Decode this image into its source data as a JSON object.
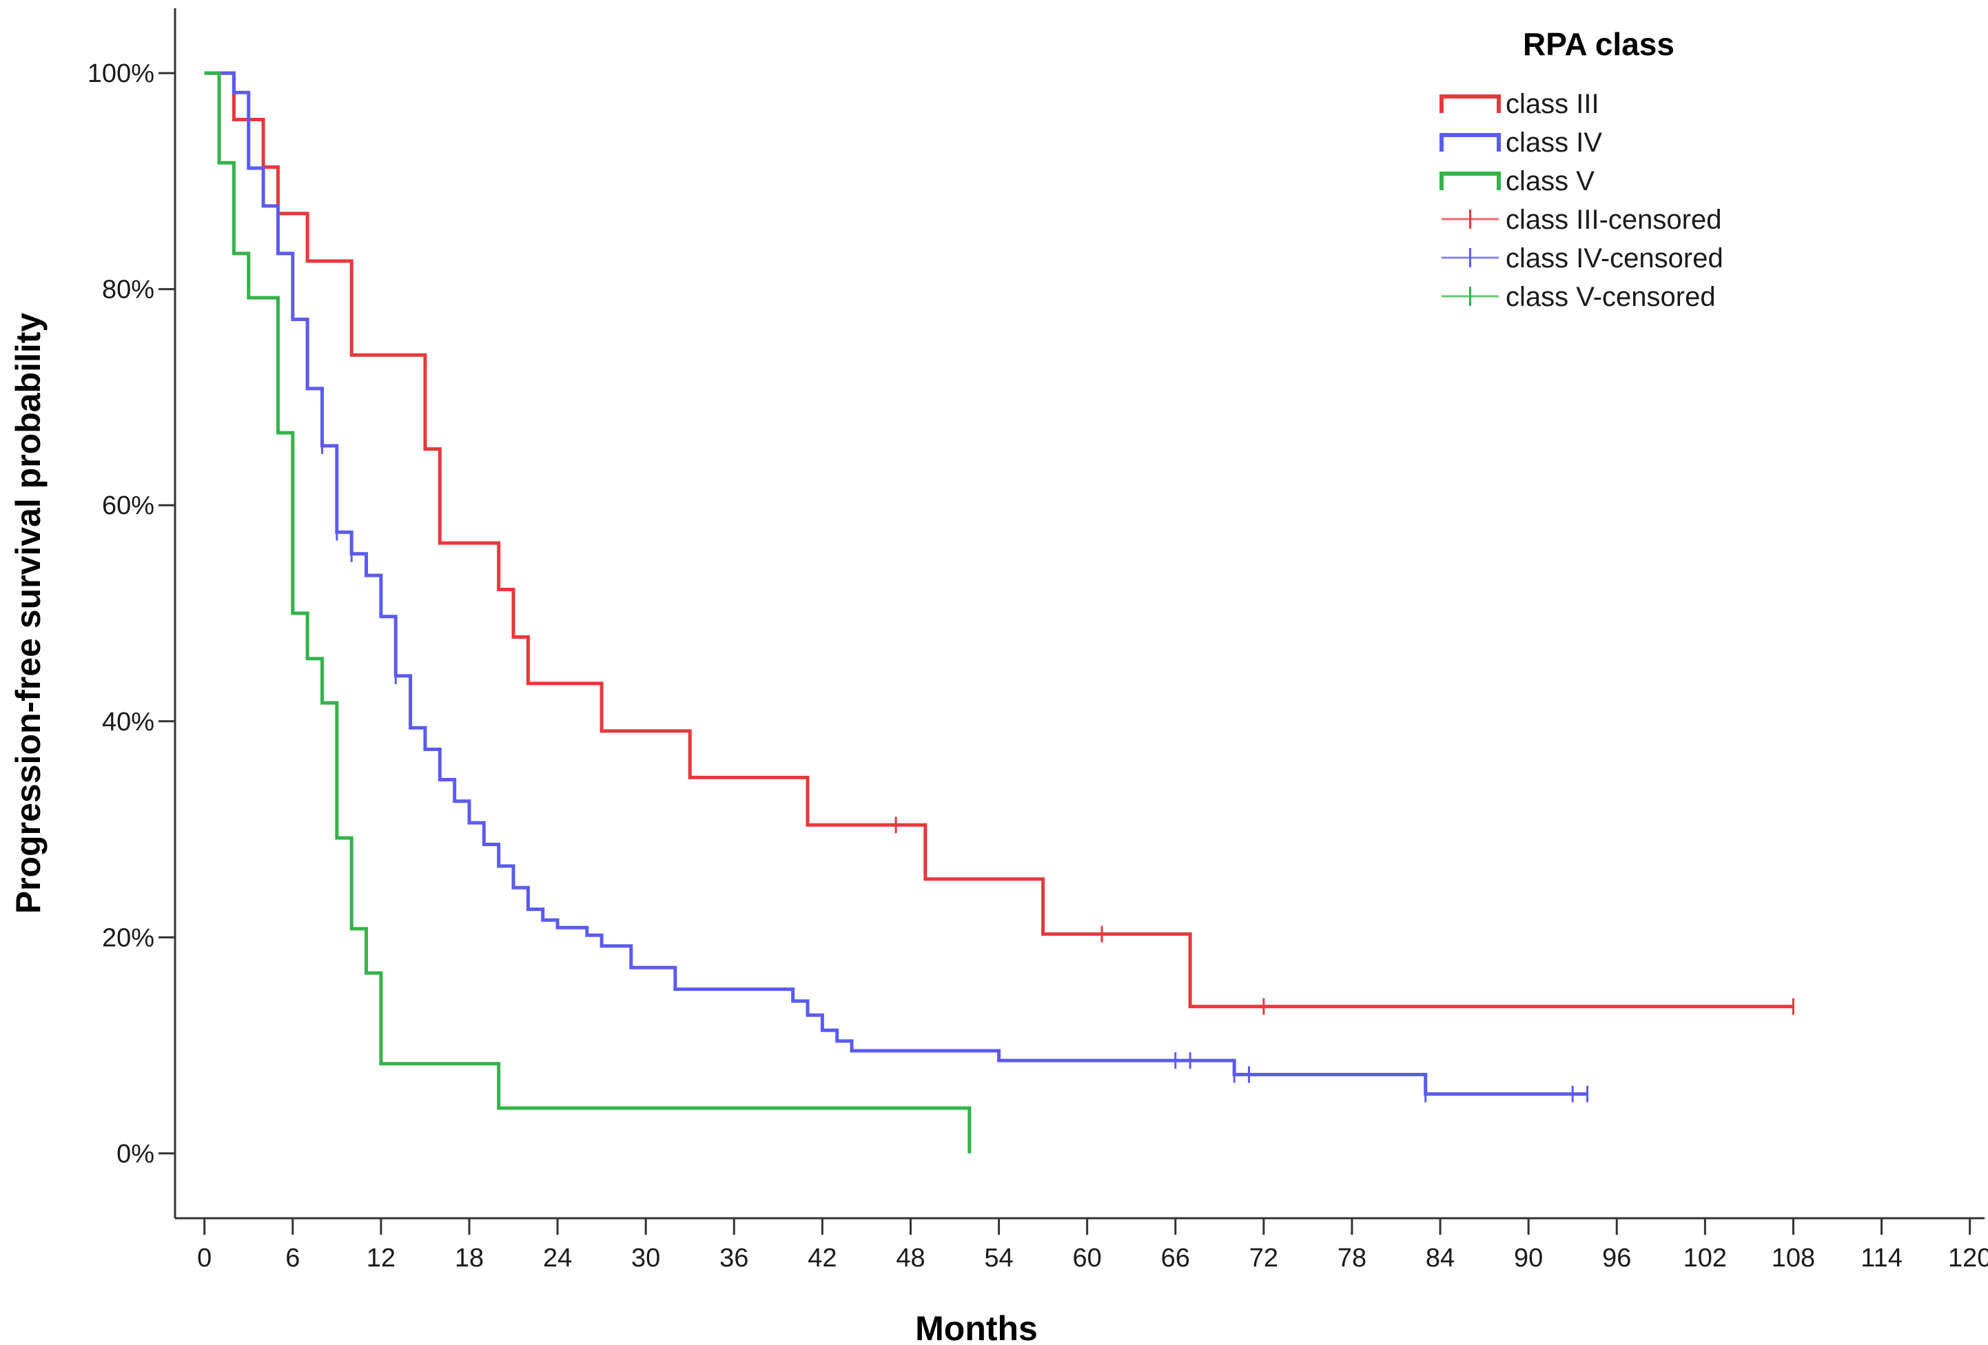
{
  "chart_data": {
    "type": "line",
    "subtype": "kaplan-meier step",
    "xlabel": "Months",
    "ylabel": "Progression-free survival probability",
    "xlim": [
      -2,
      121
    ],
    "ylim": [
      -0.06,
      1.06
    ],
    "xticks": [
      0,
      6,
      12,
      18,
      24,
      30,
      36,
      42,
      48,
      54,
      60,
      66,
      72,
      78,
      84,
      90,
      96,
      102,
      108,
      114,
      120
    ],
    "xtick_labels": [
      "0",
      "6",
      "12",
      "18",
      "24",
      "30",
      "36",
      "42",
      "48",
      "54",
      "60",
      "66",
      "72",
      "78",
      "84",
      "90",
      "96",
      "102",
      "108",
      "114",
      "120"
    ],
    "yticks": [
      0,
      0.2,
      0.4,
      0.6,
      0.8,
      1.0
    ],
    "ytick_labels": [
      "0%",
      "20%",
      "40%",
      "60%",
      "80%",
      "100%"
    ],
    "grid": false,
    "legend": {
      "title": "RPA class",
      "position": "top-right",
      "entries": [
        "class III",
        "class IV",
        "class V",
        "class III-censored",
        "class IV-censored",
        "class V-censored"
      ]
    },
    "series": [
      {
        "name": "class III",
        "color": "#e8383d",
        "steps": [
          [
            0,
            1.0
          ],
          [
            2,
            0.957
          ],
          [
            4,
            0.913
          ],
          [
            5,
            0.87
          ],
          [
            7,
            0.826
          ],
          [
            10,
            0.739
          ],
          [
            15,
            0.652
          ],
          [
            16,
            0.565
          ],
          [
            20,
            0.522
          ],
          [
            21,
            0.478
          ],
          [
            22,
            0.435
          ],
          [
            27,
            0.391
          ],
          [
            33,
            0.348
          ],
          [
            41,
            0.304
          ],
          [
            49,
            0.254
          ],
          [
            57,
            0.203
          ],
          [
            67,
            0.136
          ],
          [
            108,
            0.136
          ]
        ],
        "censored": [
          [
            47,
            0.304
          ],
          [
            61,
            0.203
          ],
          [
            72,
            0.136
          ],
          [
            108,
            0.136
          ]
        ]
      },
      {
        "name": "class IV",
        "color": "#5b5bf0",
        "steps": [
          [
            0,
            1.0
          ],
          [
            2,
            0.982
          ],
          [
            3,
            0.912
          ],
          [
            4,
            0.877
          ],
          [
            5,
            0.833
          ],
          [
            6,
            0.772
          ],
          [
            7,
            0.708
          ],
          [
            8,
            0.655
          ],
          [
            9,
            0.575
          ],
          [
            10,
            0.555
          ],
          [
            11,
            0.535
          ],
          [
            12,
            0.497
          ],
          [
            13,
            0.442
          ],
          [
            14,
            0.394
          ],
          [
            15,
            0.374
          ],
          [
            16,
            0.346
          ],
          [
            17,
            0.326
          ],
          [
            18,
            0.306
          ],
          [
            19,
            0.286
          ],
          [
            20,
            0.266
          ],
          [
            21,
            0.246
          ],
          [
            22,
            0.226
          ],
          [
            23,
            0.216
          ],
          [
            24,
            0.209
          ],
          [
            26,
            0.202
          ],
          [
            27,
            0.192
          ],
          [
            29,
            0.172
          ],
          [
            32,
            0.152
          ],
          [
            40,
            0.141
          ],
          [
            41,
            0.128
          ],
          [
            42,
            0.114
          ],
          [
            43,
            0.104
          ],
          [
            44,
            0.095
          ],
          [
            54,
            0.086
          ],
          [
            70,
            0.073
          ],
          [
            83,
            0.055
          ],
          [
            94,
            0.055
          ]
        ],
        "censored": [
          [
            8,
            0.655
          ],
          [
            9,
            0.575
          ],
          [
            10,
            0.555
          ],
          [
            13,
            0.442
          ],
          [
            66,
            0.086
          ],
          [
            67,
            0.086
          ],
          [
            70,
            0.073
          ],
          [
            71,
            0.073
          ],
          [
            83,
            0.055
          ],
          [
            93,
            0.055
          ],
          [
            94,
            0.055
          ]
        ]
      },
      {
        "name": "class V",
        "color": "#34b34a",
        "steps": [
          [
            0,
            1.0
          ],
          [
            1,
            0.917
          ],
          [
            2,
            0.833
          ],
          [
            3,
            0.792
          ],
          [
            5,
            0.667
          ],
          [
            6,
            0.5
          ],
          [
            7,
            0.458
          ],
          [
            8,
            0.417
          ],
          [
            9,
            0.292
          ],
          [
            10,
            0.208
          ],
          [
            11,
            0.167
          ],
          [
            12,
            0.083
          ],
          [
            20,
            0.042
          ],
          [
            52,
            0.0
          ]
        ],
        "censored": []
      }
    ]
  }
}
